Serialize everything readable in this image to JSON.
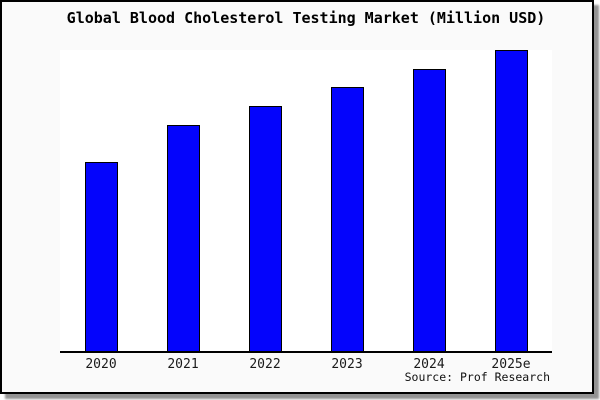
{
  "window": {
    "background": "#fafafa",
    "border_color": "#000000",
    "shadow_color": "#939393"
  },
  "chart_data": {
    "type": "bar",
    "title": "Global Blood Cholesterol Testing Market (Million USD)",
    "categories": [
      "2020",
      "2021",
      "2022",
      "2023",
      "2024",
      "2025e"
    ],
    "values": [
      62.8,
      75.1,
      81.4,
      87.7,
      93.7,
      100
    ],
    "values_note": "y-axis is unlabeled (no ticks or gridlines); values estimated from bar pixel heights relative to tallest bar 2025e = 100",
    "ylim": [
      0,
      100
    ],
    "xlabel": "",
    "ylabel": "",
    "grid": false,
    "legend": null,
    "bar_color": "#0404fc",
    "bar_border_color": "#000000",
    "plot_background": "#ffffff",
    "axis_color": "#000000"
  },
  "source": {
    "label": "Source: Prof Research"
  }
}
